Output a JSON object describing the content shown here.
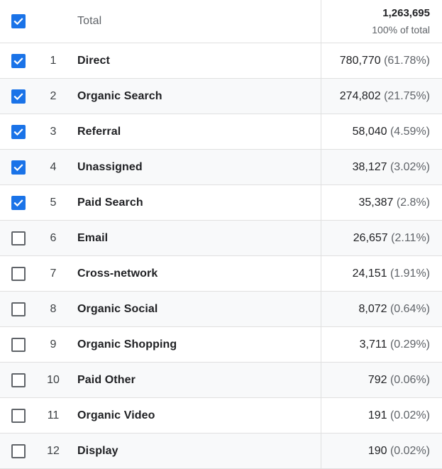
{
  "header": {
    "label": "Total",
    "total_value": "1,263,695",
    "total_sub": "100% of total",
    "checked": true
  },
  "rows": [
    {
      "index": "1",
      "label": "Direct",
      "value": "780,770",
      "pct": "(61.78%)",
      "checked": true
    },
    {
      "index": "2",
      "label": "Organic Search",
      "value": "274,802",
      "pct": "(21.75%)",
      "checked": true
    },
    {
      "index": "3",
      "label": "Referral",
      "value": "58,040",
      "pct": "(4.59%)",
      "checked": true
    },
    {
      "index": "4",
      "label": "Unassigned",
      "value": "38,127",
      "pct": "(3.02%)",
      "checked": true
    },
    {
      "index": "5",
      "label": "Paid Search",
      "value": "35,387",
      "pct": "(2.8%)",
      "checked": true
    },
    {
      "index": "6",
      "label": "Email",
      "value": "26,657",
      "pct": "(2.11%)",
      "checked": false
    },
    {
      "index": "7",
      "label": "Cross-network",
      "value": "24,151",
      "pct": "(1.91%)",
      "checked": false
    },
    {
      "index": "8",
      "label": "Organic Social",
      "value": "8,072",
      "pct": "(0.64%)",
      "checked": false
    },
    {
      "index": "9",
      "label": "Organic Shopping",
      "value": "3,711",
      "pct": "(0.29%)",
      "checked": false
    },
    {
      "index": "10",
      "label": "Paid Other",
      "value": "792",
      "pct": "(0.06%)",
      "checked": false
    },
    {
      "index": "11",
      "label": "Organic Video",
      "value": "191",
      "pct": "(0.02%)",
      "checked": false
    },
    {
      "index": "12",
      "label": "Display",
      "value": "190",
      "pct": "(0.02%)",
      "checked": false
    }
  ],
  "colors": {
    "checkbox_checked": "#1a73e8",
    "checkbox_unchecked_border": "#5f6368",
    "divider": "#e0e0e0",
    "stripe": "#f8f9fa"
  }
}
